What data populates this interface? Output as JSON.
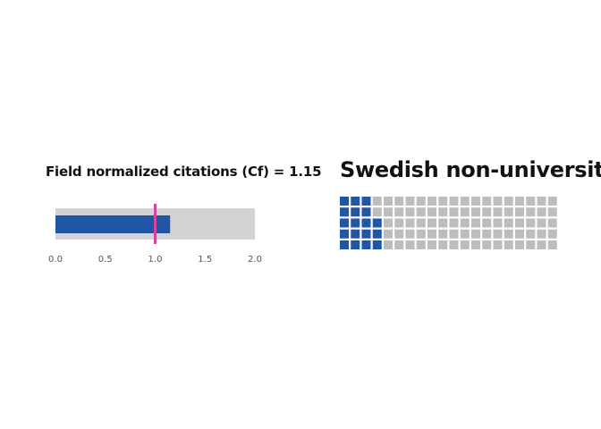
{
  "chart_data": [
    {
      "type": "bar",
      "title": "Field normalized citations (Cf) = 1.15",
      "value": 1.15,
      "reference": 1.0,
      "xlim": [
        0.0,
        2.0
      ],
      "ticks": [
        "0.0",
        "0.5",
        "1.0",
        "1.5",
        "2.0"
      ],
      "tick_values": [
        0.0,
        0.5,
        1.0,
        1.5,
        2.0
      ],
      "grid": false,
      "colors": {
        "bar": "#1f57a6",
        "reference": "#d6449b",
        "range": "#d3d3d3"
      }
    },
    {
      "type": "heatmap",
      "title": "Swedish non-university:",
      "rows": 5,
      "cols": 20,
      "filled_per_row": [
        3,
        3,
        4,
        4,
        4
      ],
      "filled_total": 18,
      "total_cells": 100,
      "colors": {
        "filled": "#1f57a6",
        "empty": "#bdbdbd"
      }
    }
  ]
}
